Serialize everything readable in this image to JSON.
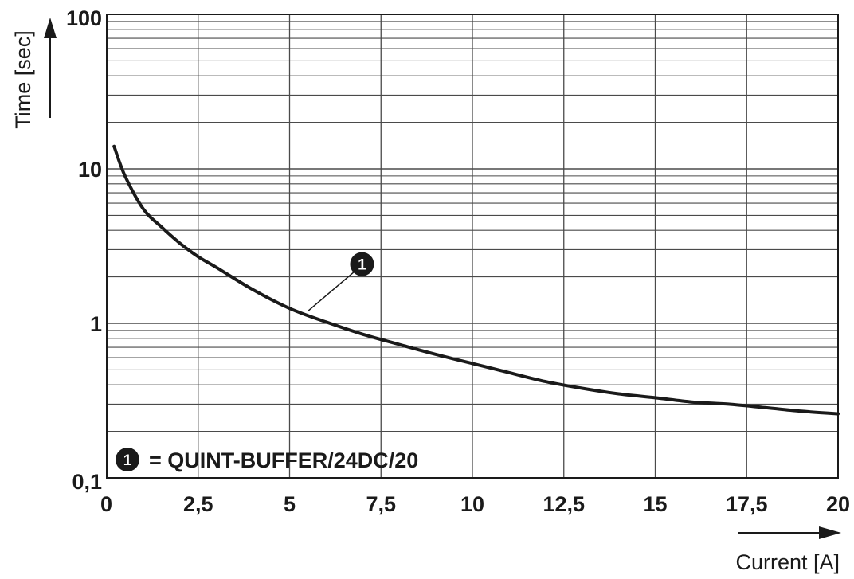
{
  "chart_data": {
    "type": "line",
    "title": "",
    "xlabel": "Current [A]",
    "ylabel": "Time [sec]",
    "xlim": [
      0,
      20
    ],
    "ylim": [
      0.1,
      100
    ],
    "y_scale": "log",
    "grid": true,
    "x_ticks": [
      0,
      2.5,
      5,
      7.5,
      10,
      12.5,
      15,
      17.5,
      20
    ],
    "x_tick_labels": [
      "0",
      "2,5",
      "5",
      "7,5",
      "10",
      "12,5",
      "15",
      "17,5",
      "20"
    ],
    "y_ticks": [
      0.1,
      1,
      10,
      100
    ],
    "y_tick_labels": [
      "0,1",
      "1",
      "10",
      "100"
    ],
    "series": [
      {
        "marker_label": "1",
        "x": [
          0.2,
          0.5,
          1,
          1.5,
          2,
          2.5,
          3,
          4,
          5,
          6,
          7,
          8,
          9,
          10,
          11,
          12,
          13,
          14,
          15,
          16,
          17,
          18,
          19,
          20
        ],
        "y": [
          14,
          9,
          5.5,
          4.2,
          3.3,
          2.7,
          2.3,
          1.65,
          1.25,
          1.02,
          0.85,
          0.73,
          0.63,
          0.55,
          0.48,
          0.42,
          0.38,
          0.35,
          0.33,
          0.31,
          0.3,
          0.285,
          0.27,
          0.26
        ]
      }
    ],
    "annotation": {
      "marker": "1",
      "x": 5.5,
      "y": 1.2
    },
    "legend": {
      "marker": "1",
      "text": "= QUINT-BUFFER/24DC/20",
      "position": "bottom-left"
    },
    "colors": {
      "line": "#1a1a1a",
      "grid": "#4a4a4a",
      "marker": "#1a1a1a"
    }
  }
}
